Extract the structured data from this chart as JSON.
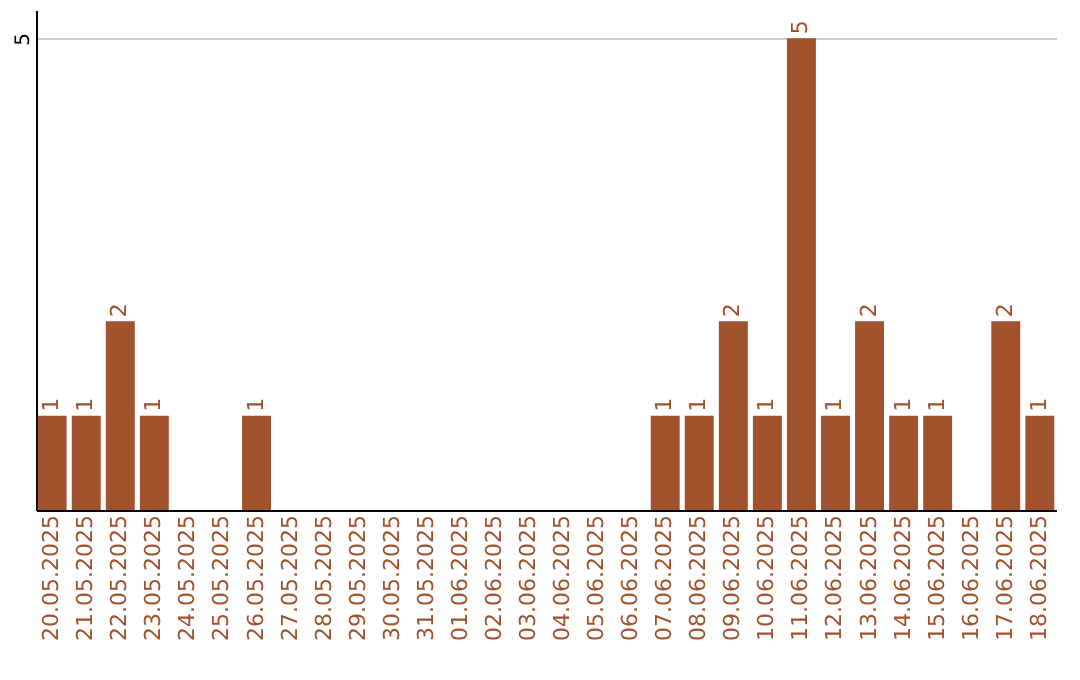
{
  "chart_data": {
    "type": "bar",
    "categories": [
      "20.05.2025",
      "21.05.2025",
      "22.05.2025",
      "23.05.2025",
      "24.05.2025",
      "25.05.2025",
      "26.05.2025",
      "27.05.2025",
      "28.05.2025",
      "29.05.2025",
      "30.05.2025",
      "31.05.2025",
      "01.06.2025",
      "02.06.2025",
      "03.06.2025",
      "04.06.2025",
      "05.06.2025",
      "06.06.2025",
      "07.06.2025",
      "08.06.2025",
      "09.06.2025",
      "10.06.2025",
      "11.06.2025",
      "12.06.2025",
      "13.06.2025",
      "14.06.2025",
      "15.06.2025",
      "16.06.2025",
      "17.06.2025",
      "18.06.2025"
    ],
    "values": [
      1,
      1,
      2,
      1,
      0,
      0,
      1,
      0,
      0,
      0,
      0,
      0,
      0,
      0,
      0,
      0,
      0,
      0,
      1,
      1,
      2,
      1,
      5,
      1,
      2,
      1,
      1,
      0,
      2,
      1
    ],
    "value_labels": [
      "1",
      "1",
      "2",
      "1",
      null,
      null,
      "1",
      null,
      null,
      null,
      null,
      null,
      null,
      null,
      null,
      null,
      null,
      null,
      "1",
      "1",
      "2",
      "1",
      "5",
      "1",
      "2",
      "1",
      "1",
      null,
      "2",
      "1"
    ],
    "color": "#a0522d",
    "ylim": [
      0,
      5.3
    ],
    "yticks": [
      5
    ],
    "grid": "y"
  }
}
